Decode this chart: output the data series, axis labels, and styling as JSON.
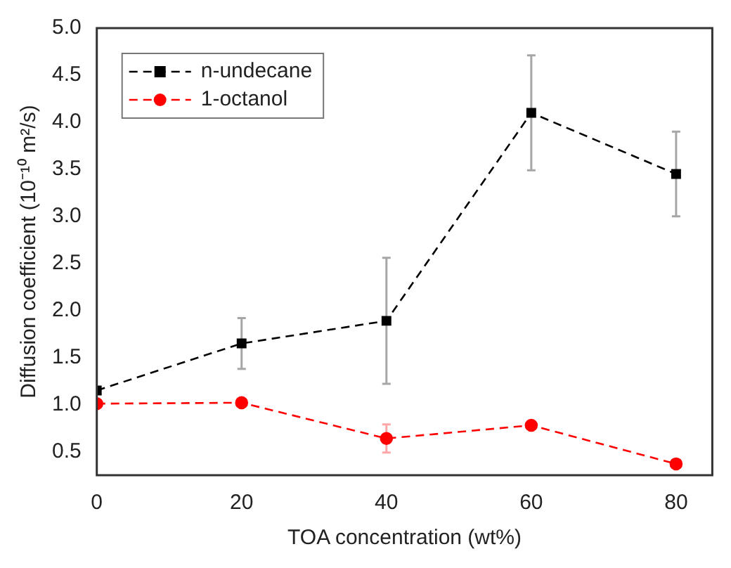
{
  "chart_data": {
    "type": "line",
    "xlabel": "TOA concentration (wt%)",
    "ylabel": "Diffusion coefficient (10⁻¹⁰ m²/s)",
    "x": [
      0,
      20,
      40,
      60,
      80
    ],
    "series": [
      {
        "name": "n-undecane",
        "color": "#000000",
        "values": [
          1.15,
          1.65,
          1.89,
          4.1,
          3.45
        ],
        "errors": [
          null,
          0.27,
          0.67,
          0.61,
          0.45
        ],
        "marker": "square"
      },
      {
        "name": "1-octanol",
        "color": "#ff0000",
        "values": [
          1.01,
          1.02,
          0.64,
          0.78,
          0.37
        ],
        "errors": [
          null,
          null,
          0.15,
          null,
          null
        ],
        "marker": "circle"
      }
    ],
    "xlim": [
      0,
      85
    ],
    "xticks": [
      0,
      20,
      40,
      60,
      80
    ],
    "ylim": [
      0.25,
      5
    ],
    "yticks": [
      0.5,
      {
        "value": 1,
        "label": "1.0"
      },
      1.5,
      {
        "value": 2,
        "label": "2.0"
      },
      2.5,
      {
        "value": 3,
        "label": "3.0"
      },
      3.5,
      {
        "value": 4,
        "label": "4.0"
      },
      4.5,
      {
        "value": 5,
        "label": "5.0"
      }
    ],
    "grid": false,
    "legend": "top left",
    "line_style": "dashed"
  }
}
